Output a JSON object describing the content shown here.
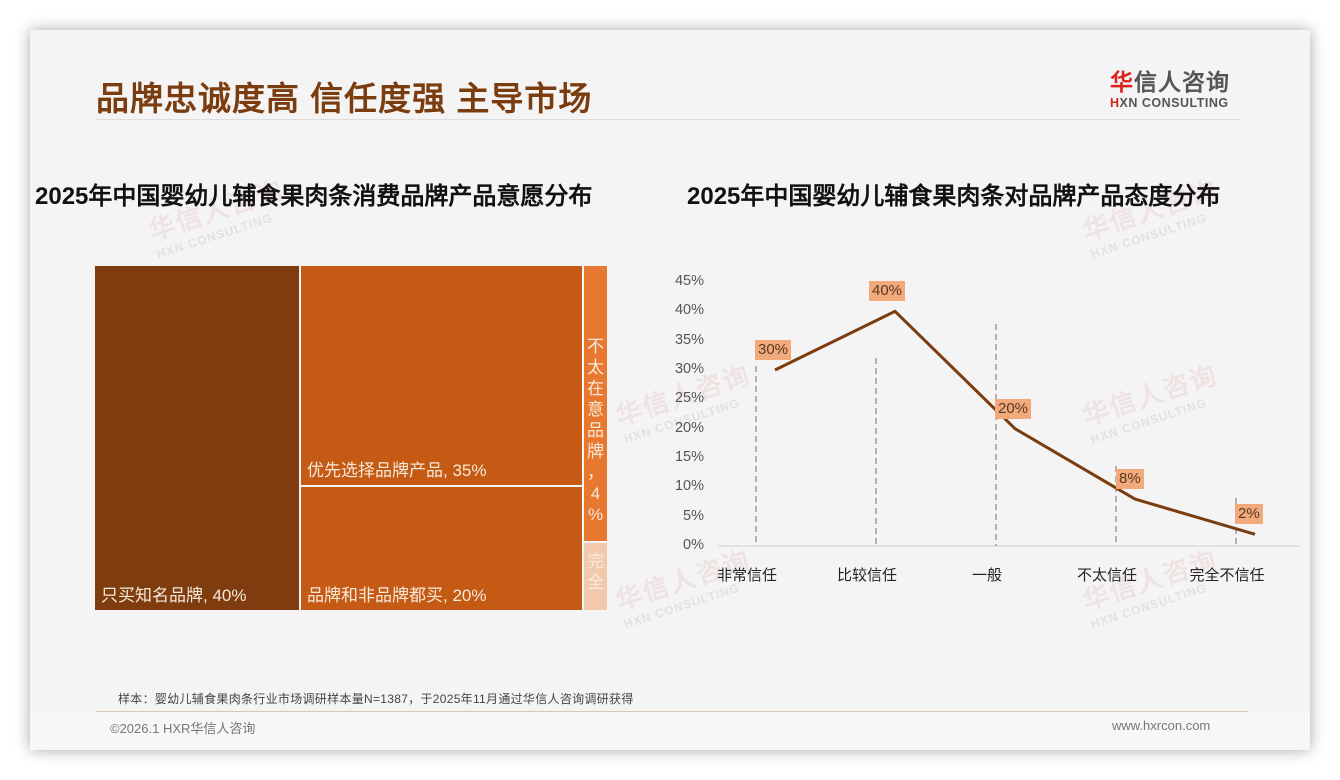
{
  "header": {
    "title": "品牌忠诚度高 信任度强 主导市场",
    "logo_cn_first": "华",
    "logo_cn_rest": "信人咨询",
    "logo_en_first": "H",
    "logo_en_rest": "XN CONSULTING"
  },
  "watermark": {
    "cn": "华信人咨询",
    "en": "HXN CONSULTING"
  },
  "chart_data": [
    {
      "type": "treemap",
      "title": "2025年中国婴幼儿辅食果肉条消费品牌产品意愿分布",
      "categories": [
        "只买知名品牌",
        "优先选择品牌产品",
        "品牌和非品牌都买",
        "不太在意品牌",
        "完全不在意品牌"
      ],
      "values": [
        40,
        35,
        20,
        4,
        1
      ],
      "labels": [
        "只买知名品牌, 40%",
        "优先选择品牌产品, 35%",
        "品牌和非品牌都买, 20%",
        "不太在意品牌，4%",
        "完全"
      ],
      "colors": [
        "#7f3c0f",
        "#c45a14",
        "#c45a14",
        "#e8772f",
        "#f2c9aa"
      ],
      "vertical_label_chars_4": [
        "不",
        "太",
        "在",
        "意",
        "品",
        "牌",
        "，",
        "4",
        "%"
      ],
      "vertical_label_chars_5": [
        "完",
        "全"
      ]
    },
    {
      "type": "line",
      "title": "2025年中国婴幼儿辅食果肉条对品牌产品态度分布",
      "categories": [
        "非常信任",
        "比较信任",
        "一般",
        "不太信任",
        "完全不信任"
      ],
      "series": [
        {
          "name": "态度分布",
          "values": [
            30,
            40,
            20,
            8,
            2
          ],
          "color": "#7b3d10"
        }
      ],
      "data_labels": [
        "30%",
        "40%",
        "20%",
        "8%",
        "2%"
      ],
      "yticks": [
        "0%",
        "5%",
        "10%",
        "15%",
        "20%",
        "25%",
        "30%",
        "35%",
        "40%",
        "45%"
      ],
      "ylim": [
        0,
        45
      ],
      "xlabel": "",
      "ylabel": "",
      "grid": false,
      "label_bg": "#f2a97c"
    }
  ],
  "footer": {
    "note": "样本：婴幼儿辅食果肉条行业市场调研样本量N=1387，于2025年11月通过华信人咨询调研获得",
    "copyright": "©2026.1 HXR华信人咨询",
    "website": "www.hxrcon.com"
  }
}
